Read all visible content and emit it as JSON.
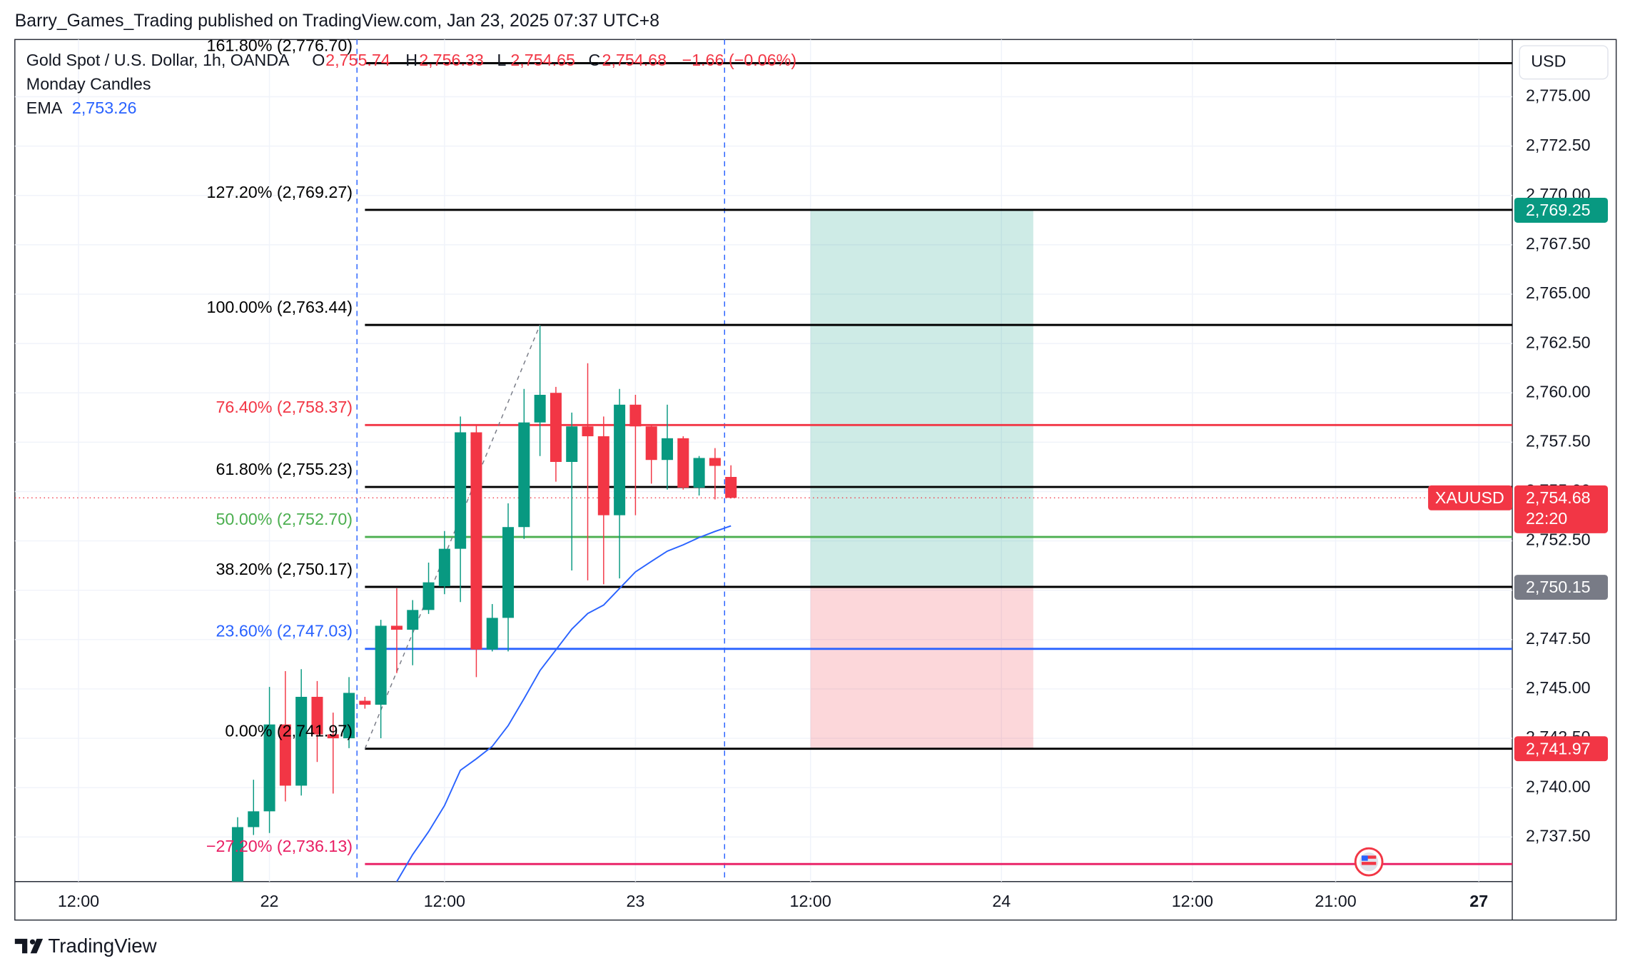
{
  "header": {
    "title": "Barry_Games_Trading published on TradingView.com, Jan 23, 2025 07:37 UTC+8"
  },
  "footer": {
    "brand": "TradingView"
  },
  "chart_data": {
    "type": "candlestick",
    "symbol": "Gold Spot / U.S. Dollar, 1h, OANDA",
    "ohlc_legend": [
      {
        "key": "O",
        "value": "2,755.74"
      },
      {
        "key": "H",
        "value": "2,756.33"
      },
      {
        "key": "L",
        "value": "2,754.65"
      },
      {
        "key": "C",
        "value": "2,754.68"
      }
    ],
    "change": "−1.66 (−0.06%)",
    "indicator_names": [
      "Monday Candles"
    ],
    "currency": "USD",
    "up_color": "#089981",
    "down_color": "#f23645",
    "x": [
      0,
      1,
      2,
      3,
      4,
      5,
      6,
      7,
      8,
      9,
      10,
      11,
      12,
      13,
      14,
      15,
      16,
      17,
      18,
      19,
      20,
      21,
      22,
      23,
      24,
      25,
      26,
      27,
      28,
      29,
      30,
      31
    ],
    "open": [
      2735.0,
      2738.0,
      2738.8,
      2743.2,
      2740.1,
      2744.6,
      2742.7,
      2742.5,
      2744.4,
      2744.2,
      2748.2,
      2748.0,
      2749.0,
      2750.2,
      2752.1,
      2758.0,
      2747.0,
      2748.6,
      2753.2,
      2758.5,
      2760.0,
      2756.5,
      2758.3,
      2757.8,
      2753.8,
      2759.4,
      2758.3,
      2756.6,
      2757.7,
      2755.2,
      2756.7,
      2755.74
    ],
    "high": [
      2738.5,
      2740.4,
      2745.1,
      2745.9,
      2746.0,
      2745.4,
      2743.8,
      2745.6,
      2744.6,
      2748.5,
      2750.1,
      2749.5,
      2751.4,
      2753.0,
      2758.8,
      2758.4,
      2749.3,
      2754.4,
      2760.2,
      2763.4,
      2760.3,
      2759.0,
      2761.5,
      2758.8,
      2760.2,
      2759.9,
      2758.4,
      2759.4,
      2757.8,
      2756.8,
      2757.2,
      2756.33
    ],
    "low": [
      2734.5,
      2737.6,
      2737.7,
      2739.3,
      2739.6,
      2741.3,
      2739.7,
      2742.0,
      2744.0,
      2742.5,
      2745.8,
      2746.2,
      2748.8,
      2749.8,
      2749.4,
      2745.6,
      2746.9,
      2746.9,
      2752.6,
      2756.8,
      2755.5,
      2751.0,
      2750.5,
      2750.3,
      2750.6,
      2753.8,
      2755.4,
      2755.1,
      2755.1,
      2754.8,
      2754.6,
      2754.65
    ],
    "close": [
      2738.0,
      2738.8,
      2743.2,
      2740.1,
      2744.6,
      2742.7,
      2742.5,
      2744.8,
      2744.2,
      2748.2,
      2748.0,
      2749.0,
      2750.4,
      2752.1,
      2758.0,
      2747.0,
      2748.6,
      2753.2,
      2758.5,
      2759.9,
      2756.5,
      2758.3,
      2757.8,
      2753.8,
      2759.4,
      2758.3,
      2756.6,
      2757.7,
      2755.2,
      2756.7,
      2756.3,
      2754.68
    ],
    "ema": {
      "name": "EMA",
      "value_label": "2,753.26",
      "color": "#2962ff",
      "x": [
        10,
        11,
        12,
        13,
        14,
        15,
        16,
        17,
        18,
        19,
        20,
        21,
        22,
        23,
        24,
        25,
        26,
        27,
        28,
        29,
        30,
        31
      ],
      "values": [
        2735.24,
        2736.61,
        2737.77,
        2739.09,
        2740.88,
        2741.46,
        2742.09,
        2743.14,
        2744.51,
        2745.93,
        2746.98,
        2748.03,
        2748.82,
        2749.25,
        2750.09,
        2750.93,
        2751.46,
        2751.98,
        2752.3,
        2752.67,
        2752.98,
        2753.26
      ]
    },
    "fib_levels": [
      {
        "label": "161.80% (2,776.70)",
        "value": 2776.7,
        "color": "#000000"
      },
      {
        "label": "127.20% (2,769.27)",
        "value": 2769.27,
        "color": "#000000"
      },
      {
        "label": "100.00% (2,763.44)",
        "value": 2763.44,
        "color": "#000000"
      },
      {
        "label": "76.40% (2,758.37)",
        "value": 2758.37,
        "color": "#f23645"
      },
      {
        "label": "61.80% (2,755.23)",
        "value": 2755.23,
        "color": "#000000"
      },
      {
        "label": "50.00% (2,752.70)",
        "value": 2752.7,
        "color": "#4caf50"
      },
      {
        "label": "38.20% (2,750.17)",
        "value": 2750.17,
        "color": "#000000"
      },
      {
        "label": "23.60% (2,747.03)",
        "value": 2747.03,
        "color": "#2962ff"
      },
      {
        "label": "0.00% (2,741.97)",
        "value": 2741.97,
        "color": "#000000"
      },
      {
        "label": "−27.20% (2,736.13)",
        "value": 2736.13,
        "color": "#e91e63"
      }
    ],
    "fib_x_start": 8,
    "fib_trend": {
      "x": [
        8,
        19
      ],
      "values": [
        2741.97,
        2763.44
      ]
    },
    "vlines": [
      7.5,
      30.6
    ],
    "position": {
      "x_start": 36,
      "x_end": 50,
      "target": 2769.25,
      "entry": 2750.15,
      "stop": 2741.97
    },
    "price_tags": [
      {
        "label": "2,769.25",
        "value": 2769.25,
        "color": "#089981"
      },
      {
        "label": "2,750.15",
        "value": 2750.15,
        "color": "#787b86"
      },
      {
        "label": "2,741.97",
        "value": 2741.97,
        "color": "#f23645"
      }
    ],
    "last_tag": {
      "symbol": "XAUUSD",
      "label": "2,754.68",
      "value": 2754.68,
      "countdown": "22:20",
      "color": "#f23645"
    },
    "xlim": [
      -14,
      80.1
    ],
    "xticks": [
      {
        "value": -10,
        "label": "12:00"
      },
      {
        "value": 2,
        "label": "22"
      },
      {
        "value": 13,
        "label": "12:00"
      },
      {
        "value": 25,
        "label": "23"
      },
      {
        "value": 36,
        "label": "12:00"
      },
      {
        "value": 48,
        "label": "24"
      },
      {
        "value": 60,
        "label": "12:00"
      },
      {
        "value": 69,
        "label": "21:00"
      },
      {
        "value": 78,
        "label": "27"
      }
    ],
    "ylim": [
      2735.24,
      2777.9
    ],
    "yticks": [
      {
        "value": 2737.5,
        "label": "2,737.50"
      },
      {
        "value": 2740,
        "label": "2,740.00"
      },
      {
        "value": 2742.5,
        "label": "2,742.50"
      },
      {
        "value": 2745,
        "label": "2,745.00"
      },
      {
        "value": 2747.5,
        "label": "2,747.50"
      },
      {
        "value": 2750,
        "label": "2,750.00"
      },
      {
        "value": 2752.5,
        "label": "2,752.50"
      },
      {
        "value": 2755,
        "label": "2,755.00"
      },
      {
        "value": 2757.5,
        "label": "2,757.50"
      },
      {
        "value": 2760,
        "label": "2,760.00"
      },
      {
        "value": 2762.5,
        "label": "2,762.50"
      },
      {
        "value": 2765,
        "label": "2,765.00"
      },
      {
        "value": 2767.5,
        "label": "2,767.50"
      },
      {
        "value": 2770,
        "label": "2,770.00"
      },
      {
        "value": 2772.5,
        "label": "2,772.50"
      },
      {
        "value": 2775,
        "label": "2,775.00"
      }
    ],
    "grid": true
  }
}
